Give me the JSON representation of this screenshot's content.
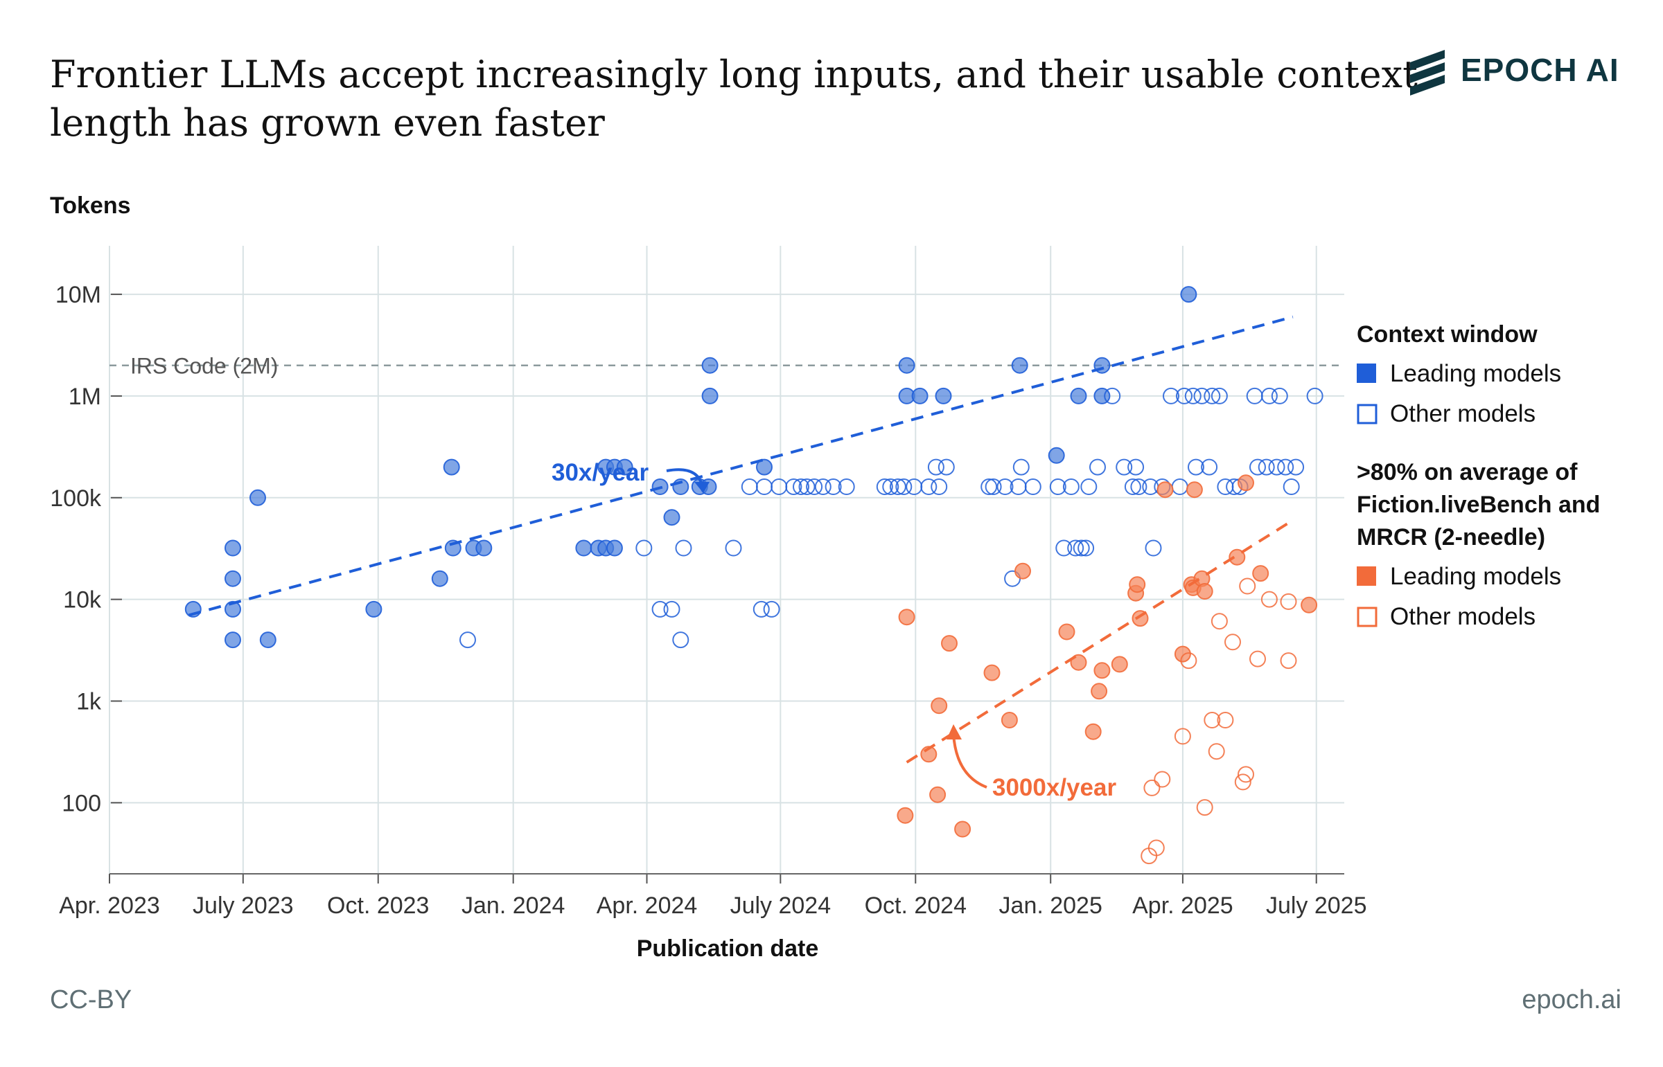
{
  "header": {
    "title_line1": "Frontier LLMs accept increasingly long inputs, and their usable context",
    "title_line2": "length has grown even faster",
    "logo_text": "EPOCH AI",
    "logo_icon": "epoch-stripes-icon"
  },
  "footer": {
    "license": "CC-BY",
    "site": "epoch.ai"
  },
  "colors": {
    "blue_fill": "#4a7fdc",
    "blue_stroke": "#1f5ed8",
    "orange_fill": "#f5845a",
    "orange_stroke": "#f26b3a",
    "grid": "#d8e2e4",
    "text": "#111111"
  },
  "chart_data": {
    "type": "scatter",
    "title": "Frontier LLMs accept increasingly long inputs, and their usable context length has grown even faster",
    "ylabel": "Tokens",
    "xlabel": "Publication date",
    "y_scale": "log",
    "ylim": [
      20,
      30000000
    ],
    "xlim": [
      "2023-04-01",
      "2025-07-20"
    ],
    "grid": true,
    "y_ticks": [
      {
        "value": 100,
        "label": "100"
      },
      {
        "value": 1000,
        "label": "1k"
      },
      {
        "value": 10000,
        "label": "10k"
      },
      {
        "value": 100000,
        "label": "100k"
      },
      {
        "value": 1000000,
        "label": "1M"
      },
      {
        "value": 10000000,
        "label": "10M"
      }
    ],
    "x_ticks": [
      {
        "value": "2023-04-01",
        "label": "Apr. 2023"
      },
      {
        "value": "2023-07-01",
        "label": "July 2023"
      },
      {
        "value": "2023-10-01",
        "label": "Oct. 2023"
      },
      {
        "value": "2024-01-01",
        "label": "Jan. 2024"
      },
      {
        "value": "2024-04-01",
        "label": "Apr. 2024"
      },
      {
        "value": "2024-07-01",
        "label": "July 2024"
      },
      {
        "value": "2024-10-01",
        "label": "Oct. 2024"
      },
      {
        "value": "2025-01-01",
        "label": "Jan. 2025"
      },
      {
        "value": "2025-04-01",
        "label": "Apr. 2025"
      },
      {
        "value": "2025-07-01",
        "label": "July 2025"
      }
    ],
    "reference_line": {
      "value": 2000000,
      "label": "IRS Code (2M)"
    },
    "legend": {
      "placement": "right",
      "group1_title": "Context window",
      "group2_title_lines": [
        ">80% on average of",
        "Fiction.liveBench and",
        "MRCR (2-needle)"
      ],
      "leading_label": "Leading models",
      "other_label": "Other models"
    },
    "trendlines": [
      {
        "name": "30x/year",
        "series": "context",
        "start": {
          "x": "2023-05-25",
          "y": 7000
        },
        "end": {
          "x": "2025-06-15",
          "y": 6000000
        }
      },
      {
        "name": "3000x/year",
        "series": "usable",
        "start": {
          "x": "2024-09-25",
          "y": 250
        },
        "end": {
          "x": "2025-06-15",
          "y": 60000
        }
      }
    ],
    "annotations": [
      {
        "text": "30x/year",
        "x": "2024-04-15",
        "y": 170000
      },
      {
        "text": "3000x/year",
        "x": "2024-12-05",
        "y": 110
      }
    ],
    "series": [
      {
        "name": "Context window — Leading models",
        "group": "context",
        "filled": true,
        "points": [
          {
            "x": "2023-05-28",
            "y": 8000
          },
          {
            "x": "2023-06-24",
            "y": 32000
          },
          {
            "x": "2023-06-24",
            "y": 16000
          },
          {
            "x": "2023-06-24",
            "y": 8000
          },
          {
            "x": "2023-06-24",
            "y": 4000
          },
          {
            "x": "2023-07-11",
            "y": 100000
          },
          {
            "x": "2023-07-18",
            "y": 4000
          },
          {
            "x": "2023-09-28",
            "y": 8000
          },
          {
            "x": "2023-11-12",
            "y": 16000
          },
          {
            "x": "2023-11-20",
            "y": 200000
          },
          {
            "x": "2023-11-21",
            "y": 32000
          },
          {
            "x": "2023-12-05",
            "y": 32000
          },
          {
            "x": "2023-12-12",
            "y": 32000
          },
          {
            "x": "2024-02-18",
            "y": 32000
          },
          {
            "x": "2024-02-28",
            "y": 32000
          },
          {
            "x": "2024-03-04",
            "y": 32000
          },
          {
            "x": "2024-03-10",
            "y": 32000
          },
          {
            "x": "2024-03-04",
            "y": 200000
          },
          {
            "x": "2024-03-10",
            "y": 200000
          },
          {
            "x": "2024-03-17",
            "y": 200000
          },
          {
            "x": "2024-04-10",
            "y": 128000
          },
          {
            "x": "2024-04-18",
            "y": 64000
          },
          {
            "x": "2024-04-24",
            "y": 128000
          },
          {
            "x": "2024-05-07",
            "y": 128000
          },
          {
            "x": "2024-05-13",
            "y": 128000
          },
          {
            "x": "2024-05-14",
            "y": 1000000
          },
          {
            "x": "2024-05-14",
            "y": 2000000
          },
          {
            "x": "2024-06-20",
            "y": 200000
          },
          {
            "x": "2024-09-25",
            "y": 1000000
          },
          {
            "x": "2024-09-25",
            "y": 2000000
          },
          {
            "x": "2024-10-04",
            "y": 1000000
          },
          {
            "x": "2024-10-20",
            "y": 1000000
          },
          {
            "x": "2024-12-11",
            "y": 2000000
          },
          {
            "x": "2025-01-05",
            "y": 260000
          },
          {
            "x": "2025-01-20",
            "y": 1000000
          },
          {
            "x": "2025-02-05",
            "y": 1000000
          },
          {
            "x": "2025-02-05",
            "y": 2000000
          },
          {
            "x": "2025-04-05",
            "y": 10000000
          }
        ]
      },
      {
        "name": "Context window — Other models",
        "group": "context",
        "filled": false,
        "points": [
          {
            "x": "2023-12-01",
            "y": 4000
          },
          {
            "x": "2024-03-30",
            "y": 32000
          },
          {
            "x": "2024-04-10",
            "y": 8000
          },
          {
            "x": "2024-04-18",
            "y": 8000
          },
          {
            "x": "2024-04-24",
            "y": 4000
          },
          {
            "x": "2024-04-26",
            "y": 32000
          },
          {
            "x": "2024-05-30",
            "y": 32000
          },
          {
            "x": "2024-06-10",
            "y": 128000
          },
          {
            "x": "2024-06-18",
            "y": 8000
          },
          {
            "x": "2024-06-20",
            "y": 128000
          },
          {
            "x": "2024-06-25",
            "y": 8000
          },
          {
            "x": "2024-06-30",
            "y": 128000
          },
          {
            "x": "2024-07-10",
            "y": 128000
          },
          {
            "x": "2024-07-15",
            "y": 128000
          },
          {
            "x": "2024-07-19",
            "y": 128000
          },
          {
            "x": "2024-07-24",
            "y": 128000
          },
          {
            "x": "2024-07-30",
            "y": 128000
          },
          {
            "x": "2024-08-06",
            "y": 128000
          },
          {
            "x": "2024-08-15",
            "y": 128000
          },
          {
            "x": "2024-09-10",
            "y": 128000
          },
          {
            "x": "2024-09-14",
            "y": 128000
          },
          {
            "x": "2024-09-19",
            "y": 128000
          },
          {
            "x": "2024-09-23",
            "y": 128000
          },
          {
            "x": "2024-09-30",
            "y": 128000
          },
          {
            "x": "2024-10-10",
            "y": 128000
          },
          {
            "x": "2024-10-15",
            "y": 200000
          },
          {
            "x": "2024-10-22",
            "y": 200000
          },
          {
            "x": "2024-10-17",
            "y": 128000
          },
          {
            "x": "2024-11-20",
            "y": 128000
          },
          {
            "x": "2024-11-23",
            "y": 128000
          },
          {
            "x": "2024-12-01",
            "y": 128000
          },
          {
            "x": "2024-12-06",
            "y": 16000
          },
          {
            "x": "2024-12-10",
            "y": 128000
          },
          {
            "x": "2024-12-12",
            "y": 200000
          },
          {
            "x": "2024-12-20",
            "y": 128000
          },
          {
            "x": "2025-01-06",
            "y": 128000
          },
          {
            "x": "2025-01-10",
            "y": 32000
          },
          {
            "x": "2025-01-18",
            "y": 32000
          },
          {
            "x": "2025-01-22",
            "y": 32000
          },
          {
            "x": "2025-01-25",
            "y": 32000
          },
          {
            "x": "2025-01-15",
            "y": 128000
          },
          {
            "x": "2025-01-27",
            "y": 128000
          },
          {
            "x": "2025-02-02",
            "y": 200000
          },
          {
            "x": "2025-02-12",
            "y": 1000000
          },
          {
            "x": "2025-02-20",
            "y": 200000
          },
          {
            "x": "2025-02-28",
            "y": 200000
          },
          {
            "x": "2025-02-26",
            "y": 128000
          },
          {
            "x": "2025-03-02",
            "y": 128000
          },
          {
            "x": "2025-03-10",
            "y": 128000
          },
          {
            "x": "2025-03-12",
            "y": 32000
          },
          {
            "x": "2025-03-18",
            "y": 128000
          },
          {
            "x": "2025-03-24",
            "y": 1000000
          },
          {
            "x": "2025-03-30",
            "y": 128000
          },
          {
            "x": "2025-04-02",
            "y": 1000000
          },
          {
            "x": "2025-04-08",
            "y": 1000000
          },
          {
            "x": "2025-04-10",
            "y": 200000
          },
          {
            "x": "2025-04-14",
            "y": 1000000
          },
          {
            "x": "2025-04-19",
            "y": 200000
          },
          {
            "x": "2025-04-21",
            "y": 1000000
          },
          {
            "x": "2025-04-26",
            "y": 1000000
          },
          {
            "x": "2025-04-30",
            "y": 128000
          },
          {
            "x": "2025-05-06",
            "y": 128000
          },
          {
            "x": "2025-05-10",
            "y": 128000
          },
          {
            "x": "2025-05-20",
            "y": 1000000
          },
          {
            "x": "2025-05-22",
            "y": 200000
          },
          {
            "x": "2025-05-28",
            "y": 200000
          },
          {
            "x": "2025-05-30",
            "y": 1000000
          },
          {
            "x": "2025-06-04",
            "y": 200000
          },
          {
            "x": "2025-06-06",
            "y": 1000000
          },
          {
            "x": "2025-06-10",
            "y": 200000
          },
          {
            "x": "2025-06-14",
            "y": 128000
          },
          {
            "x": "2025-06-17",
            "y": 200000
          },
          {
            "x": "2025-06-30",
            "y": 1000000
          }
        ]
      },
      {
        "name": "Usable context — Leading models",
        "group": "usable",
        "filled": true,
        "points": [
          {
            "x": "2024-09-24",
            "y": 75
          },
          {
            "x": "2024-09-25",
            "y": 6700
          },
          {
            "x": "2024-10-10",
            "y": 300
          },
          {
            "x": "2024-10-16",
            "y": 120
          },
          {
            "x": "2024-10-17",
            "y": 900
          },
          {
            "x": "2024-10-24",
            "y": 3700
          },
          {
            "x": "2024-11-02",
            "y": 55
          },
          {
            "x": "2024-11-22",
            "y": 1900
          },
          {
            "x": "2024-12-04",
            "y": 650
          },
          {
            "x": "2024-12-13",
            "y": 19000
          },
          {
            "x": "2025-01-12",
            "y": 4800
          },
          {
            "x": "2025-01-20",
            "y": 2400
          },
          {
            "x": "2025-01-30",
            "y": 500
          },
          {
            "x": "2025-02-03",
            "y": 1250
          },
          {
            "x": "2025-02-05",
            "y": 2000
          },
          {
            "x": "2025-02-17",
            "y": 2300
          },
          {
            "x": "2025-02-28",
            "y": 11500
          },
          {
            "x": "2025-03-01",
            "y": 14000
          },
          {
            "x": "2025-03-03",
            "y": 6500
          },
          {
            "x": "2025-03-20",
            "y": 120000
          },
          {
            "x": "2025-04-01",
            "y": 2900
          },
          {
            "x": "2025-04-07",
            "y": 14000
          },
          {
            "x": "2025-04-08",
            "y": 13000
          },
          {
            "x": "2025-04-09",
            "y": 120000
          },
          {
            "x": "2025-04-14",
            "y": 16000
          },
          {
            "x": "2025-04-16",
            "y": 12000
          },
          {
            "x": "2025-05-08",
            "y": 26000
          },
          {
            "x": "2025-05-14",
            "y": 140000
          },
          {
            "x": "2025-05-24",
            "y": 18000
          },
          {
            "x": "2025-06-26",
            "y": 8800
          }
        ]
      },
      {
        "name": "Usable context — Other models",
        "group": "usable",
        "filled": false,
        "points": [
          {
            "x": "2025-03-09",
            "y": 30
          },
          {
            "x": "2025-03-11",
            "y": 140
          },
          {
            "x": "2025-03-14",
            "y": 36
          },
          {
            "x": "2025-03-18",
            "y": 170
          },
          {
            "x": "2025-04-01",
            "y": 450
          },
          {
            "x": "2025-04-05",
            "y": 2500
          },
          {
            "x": "2025-04-16",
            "y": 90
          },
          {
            "x": "2025-04-21",
            "y": 650
          },
          {
            "x": "2025-04-24",
            "y": 320
          },
          {
            "x": "2025-04-26",
            "y": 6100
          },
          {
            "x": "2025-05-05",
            "y": 3800
          },
          {
            "x": "2025-04-30",
            "y": 650
          },
          {
            "x": "2025-05-12",
            "y": 160
          },
          {
            "x": "2025-05-14",
            "y": 190
          },
          {
            "x": "2025-05-15",
            "y": 13500
          },
          {
            "x": "2025-05-22",
            "y": 2600
          },
          {
            "x": "2025-05-30",
            "y": 10000
          },
          {
            "x": "2025-06-12",
            "y": 9500
          },
          {
            "x": "2025-06-12",
            "y": 2500
          }
        ]
      }
    ]
  }
}
